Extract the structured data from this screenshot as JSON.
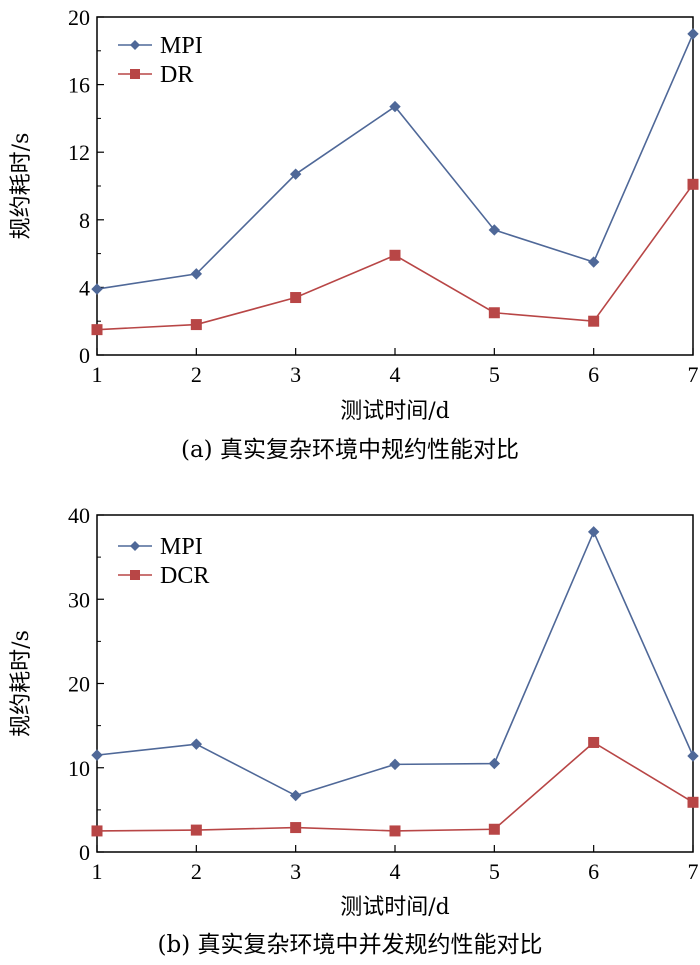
{
  "colors": {
    "mpi": "#4f6898",
    "dr": "#b84646",
    "axis": "#000000"
  },
  "chart_data": [
    {
      "type": "line",
      "caption": "(a) 真实复杂环境中规约性能对比",
      "xlabel": "测试时间/d",
      "ylabel": "规约耗时/s",
      "x": [
        1,
        2,
        3,
        4,
        5,
        6,
        7
      ],
      "xticks": [
        "1",
        "2",
        "3",
        "4",
        "5",
        "6",
        "7"
      ],
      "ylim": [
        0,
        20
      ],
      "yticks": [
        "0",
        "4",
        "8",
        "12",
        "16",
        "20"
      ],
      "ytick_values": [
        0,
        4,
        8,
        12,
        16,
        20
      ],
      "legend_position": "top-left",
      "series": [
        {
          "name": "MPI",
          "marker": "diamond",
          "color": "#4f6898",
          "values": [
            3.9,
            4.8,
            10.7,
            14.7,
            7.4,
            5.5,
            19.0
          ]
        },
        {
          "name": "DR",
          "marker": "square",
          "color": "#b84646",
          "values": [
            1.5,
            1.8,
            3.4,
            5.9,
            2.5,
            2.0,
            10.1
          ]
        }
      ]
    },
    {
      "type": "line",
      "caption": "(b) 真实复杂环境中并发规约性能对比",
      "xlabel": "测试时间/d",
      "ylabel": "规约耗时/s",
      "x": [
        1,
        2,
        3,
        4,
        5,
        6,
        7
      ],
      "xticks": [
        "1",
        "2",
        "3",
        "4",
        "5",
        "6",
        "7"
      ],
      "ylim": [
        0,
        40
      ],
      "yticks": [
        "0",
        "10",
        "20",
        "30",
        "40"
      ],
      "ytick_values": [
        0,
        10,
        20,
        30,
        40
      ],
      "legend_position": "top-left",
      "series": [
        {
          "name": "MPI",
          "marker": "diamond",
          "color": "#4f6898",
          "values": [
            11.5,
            12.8,
            6.7,
            10.4,
            10.5,
            38.0,
            11.4
          ]
        },
        {
          "name": "DCR",
          "marker": "square",
          "color": "#b84646",
          "values": [
            2.5,
            2.6,
            2.9,
            2.5,
            2.7,
            13.0,
            5.9
          ]
        }
      ]
    }
  ]
}
